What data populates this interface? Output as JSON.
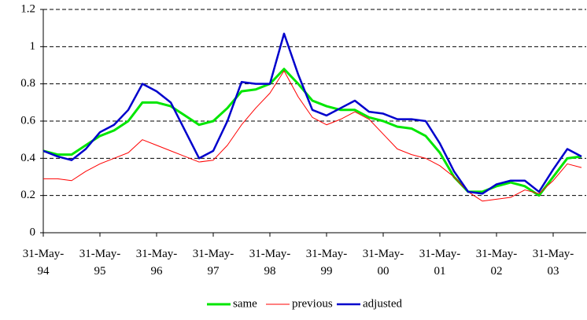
{
  "chart_data": {
    "type": "line",
    "categories": [
      "31-May-94",
      null,
      null,
      null,
      "31-May-95",
      null,
      null,
      null,
      "31-May-96",
      null,
      null,
      null,
      "31-May-97",
      null,
      null,
      null,
      "31-May-98",
      null,
      null,
      null,
      "31-May-99",
      null,
      null,
      null,
      "31-May-00",
      null,
      null,
      null,
      "31-May-01",
      null,
      null,
      null,
      "31-May-02",
      null,
      null,
      null,
      "31-May-03",
      null,
      null
    ],
    "series": [
      {
        "name": "same",
        "color": "#00e600",
        "values": [
          0.44,
          0.42,
          0.42,
          0.47,
          0.52,
          0.55,
          0.6,
          0.7,
          0.7,
          0.68,
          0.63,
          0.58,
          0.6,
          0.67,
          0.76,
          0.77,
          0.8,
          0.88,
          0.8,
          0.71,
          0.68,
          0.66,
          0.66,
          0.62,
          0.6,
          0.57,
          0.56,
          0.52,
          0.43,
          0.3,
          0.22,
          0.22,
          0.25,
          0.27,
          0.25,
          0.2,
          0.3,
          0.4,
          0.41
        ]
      },
      {
        "name": "previous",
        "color": "#ff0000",
        "values": [
          0.29,
          0.29,
          0.28,
          0.33,
          0.37,
          0.4,
          0.43,
          0.5,
          0.47,
          0.44,
          0.41,
          0.38,
          0.39,
          0.47,
          0.58,
          0.67,
          0.75,
          0.87,
          0.73,
          0.62,
          0.58,
          0.61,
          0.65,
          0.61,
          0.53,
          0.45,
          0.42,
          0.4,
          0.36,
          0.3,
          0.22,
          0.17,
          0.18,
          0.19,
          0.23,
          0.21,
          0.28,
          0.37,
          0.35
        ]
      },
      {
        "name": "adjusted",
        "color": "#0000cc",
        "values": [
          0.44,
          0.41,
          0.39,
          0.45,
          0.54,
          0.58,
          0.66,
          0.8,
          0.76,
          0.7,
          0.55,
          0.4,
          0.44,
          0.6,
          0.81,
          0.8,
          0.8,
          1.07,
          0.85,
          0.66,
          0.63,
          0.67,
          0.71,
          0.65,
          0.64,
          0.61,
          0.61,
          0.6,
          0.48,
          0.33,
          0.22,
          0.21,
          0.26,
          0.28,
          0.28,
          0.22,
          0.34,
          0.45,
          0.41
        ]
      }
    ],
    "ylim": [
      0,
      1.2
    ],
    "yticks": [
      0,
      0.2,
      0.4,
      0.6,
      0.8,
      1,
      1.2
    ],
    "grid": true,
    "legend": "bottom"
  }
}
